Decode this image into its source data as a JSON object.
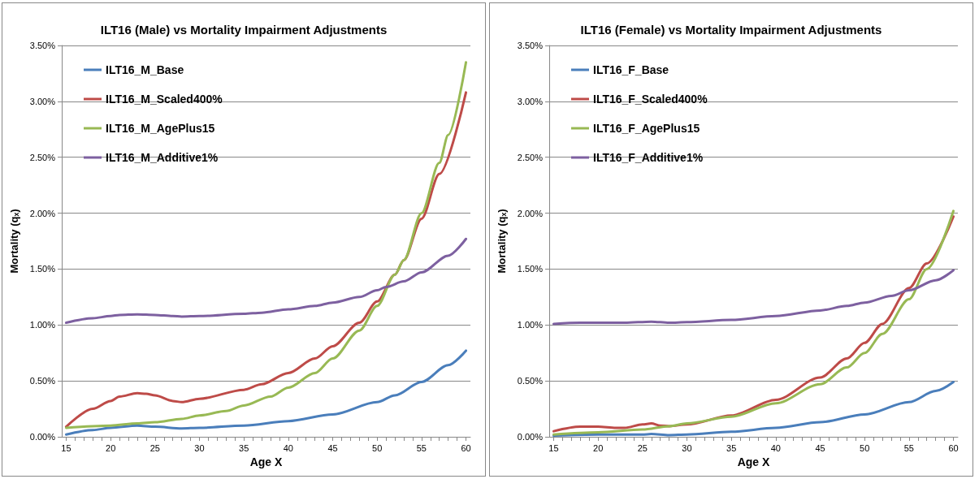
{
  "chart_data": [
    {
      "type": "line",
      "title": "ILT16 (Male) vs Mortality Impairment Adjustments",
      "xlabel": "Age X",
      "ylabel": "Mortality (qₓ)",
      "xlim": [
        14.5,
        60.5
      ],
      "ylim": [
        0,
        3.5
      ],
      "xticks": [
        15,
        {
          "value": 16,
          "label": null
        },
        {
          "value": 17,
          "label": null
        },
        {
          "value": 18,
          "label": null
        },
        {
          "value": 19,
          "label": null
        },
        20,
        {
          "value": 21,
          "label": null
        },
        {
          "value": 22,
          "label": null
        },
        {
          "value": 23,
          "label": null
        },
        {
          "value": 24,
          "label": null
        },
        25,
        {
          "value": 26,
          "label": null
        },
        {
          "value": 27,
          "label": null
        },
        {
          "value": 28,
          "label": null
        },
        {
          "value": 29,
          "label": null
        },
        30,
        {
          "value": 31,
          "label": null
        },
        {
          "value": 32,
          "label": null
        },
        {
          "value": 33,
          "label": null
        },
        {
          "value": 34,
          "label": null
        },
        35,
        {
          "value": 36,
          "label": null
        },
        {
          "value": 37,
          "label": null
        },
        {
          "value": 38,
          "label": null
        },
        {
          "value": 39,
          "label": null
        },
        40,
        {
          "value": 41,
          "label": null
        },
        {
          "value": 42,
          "label": null
        },
        {
          "value": 43,
          "label": null
        },
        {
          "value": 44,
          "label": null
        },
        45,
        {
          "value": 46,
          "label": null
        },
        {
          "value": 47,
          "label": null
        },
        {
          "value": 48,
          "label": null
        },
        {
          "value": 49,
          "label": null
        },
        50,
        {
          "value": 51,
          "label": null
        },
        {
          "value": 52,
          "label": null
        },
        {
          "value": 53,
          "label": null
        },
        {
          "value": 54,
          "label": null
        },
        55,
        {
          "value": 56,
          "label": null
        },
        {
          "value": 57,
          "label": null
        },
        {
          "value": 58,
          "label": null
        },
        {
          "value": 59,
          "label": null
        },
        60
      ],
      "yticks": [
        {
          "value": 0,
          "label": "0.00%"
        },
        {
          "value": 0.5,
          "label": "0.50%"
        },
        {
          "value": 1,
          "label": "1.00%"
        },
        {
          "value": 1.5,
          "label": "1.50%"
        },
        {
          "value": 2,
          "label": "2.00%"
        },
        {
          "value": 2.5,
          "label": "2.50%"
        },
        {
          "value": 3,
          "label": "3.00%"
        },
        {
          "value": 3.5,
          "label": "3.50%"
        }
      ],
      "grid": "y",
      "legend": "top left",
      "marker": "none",
      "line_style": "solid",
      "series": [
        {
          "name": "ILT16_M_Base",
          "color": "#4a7ebb",
          "x": [
            15,
            18,
            20,
            23,
            25,
            28,
            30,
            35,
            40,
            45,
            50,
            52,
            55,
            58,
            60
          ],
          "values": [
            0.02,
            0.06,
            0.08,
            0.1,
            0.09,
            0.075,
            0.08,
            0.1,
            0.14,
            0.2,
            0.31,
            0.37,
            0.49,
            0.64,
            0.77
          ]
        },
        {
          "name": "ILT16_M_Scaled400%",
          "color": "#be4b48",
          "x": [
            15,
            18,
            20,
            21,
            23,
            24,
            25,
            27,
            28,
            30,
            35,
            37,
            40,
            43,
            45,
            48,
            50,
            52,
            53,
            55,
            57,
            60
          ],
          "values": [
            0.09,
            0.25,
            0.32,
            0.36,
            0.39,
            0.385,
            0.37,
            0.32,
            0.31,
            0.34,
            0.42,
            0.47,
            0.57,
            0.7,
            0.81,
            1.02,
            1.21,
            1.45,
            1.58,
            1.95,
            2.35,
            3.08
          ]
        },
        {
          "name": "ILT16_M_AgePlus15",
          "color": "#98b954",
          "x": [
            15,
            20,
            23,
            25,
            28,
            30,
            33,
            35,
            38,
            40,
            43,
            45,
            48,
            50,
            52,
            53,
            55,
            57,
            58,
            60
          ],
          "values": [
            0.08,
            0.1,
            0.12,
            0.13,
            0.16,
            0.19,
            0.23,
            0.28,
            0.36,
            0.44,
            0.57,
            0.7,
            0.95,
            1.17,
            1.45,
            1.58,
            2.0,
            2.45,
            2.7,
            3.35
          ]
        },
        {
          "name": "ILT16_M_Additive1%",
          "color": "#7d60a0",
          "x": [
            15,
            18,
            20,
            21,
            23,
            25,
            27,
            28,
            30,
            35,
            37,
            40,
            43,
            45,
            48,
            50,
            51,
            53,
            55,
            58,
            60
          ],
          "values": [
            1.02,
            1.06,
            1.08,
            1.09,
            1.095,
            1.09,
            1.08,
            1.075,
            1.08,
            1.1,
            1.11,
            1.14,
            1.17,
            1.2,
            1.25,
            1.31,
            1.34,
            1.39,
            1.47,
            1.62,
            1.77
          ]
        }
      ]
    },
    {
      "type": "line",
      "title": "ILT16 (Female) vs Mortality Impairment Adjustments",
      "xlabel": "Age X",
      "ylabel": "Mortality (qₓ)",
      "xlim": [
        14.5,
        60.5
      ],
      "ylim": [
        0,
        3.5
      ],
      "xticks": [
        15,
        {
          "value": 16,
          "label": null
        },
        {
          "value": 17,
          "label": null
        },
        {
          "value": 18,
          "label": null
        },
        {
          "value": 19,
          "label": null
        },
        20,
        {
          "value": 21,
          "label": null
        },
        {
          "value": 22,
          "label": null
        },
        {
          "value": 23,
          "label": null
        },
        {
          "value": 24,
          "label": null
        },
        25,
        {
          "value": 26,
          "label": null
        },
        {
          "value": 27,
          "label": null
        },
        {
          "value": 28,
          "label": null
        },
        {
          "value": 29,
          "label": null
        },
        30,
        {
          "value": 31,
          "label": null
        },
        {
          "value": 32,
          "label": null
        },
        {
          "value": 33,
          "label": null
        },
        {
          "value": 34,
          "label": null
        },
        35,
        {
          "value": 36,
          "label": null
        },
        {
          "value": 37,
          "label": null
        },
        {
          "value": 38,
          "label": null
        },
        {
          "value": 39,
          "label": null
        },
        40,
        {
          "value": 41,
          "label": null
        },
        {
          "value": 42,
          "label": null
        },
        {
          "value": 43,
          "label": null
        },
        {
          "value": 44,
          "label": null
        },
        45,
        {
          "value": 46,
          "label": null
        },
        {
          "value": 47,
          "label": null
        },
        {
          "value": 48,
          "label": null
        },
        {
          "value": 49,
          "label": null
        },
        50,
        {
          "value": 51,
          "label": null
        },
        {
          "value": 52,
          "label": null
        },
        {
          "value": 53,
          "label": null
        },
        {
          "value": 54,
          "label": null
        },
        55,
        {
          "value": 56,
          "label": null
        },
        {
          "value": 57,
          "label": null
        },
        {
          "value": 58,
          "label": null
        },
        {
          "value": 59,
          "label": null
        },
        60
      ],
      "yticks": [
        {
          "value": 0,
          "label": "0.00%"
        },
        {
          "value": 0.5,
          "label": "0.50%"
        },
        {
          "value": 1,
          "label": "1.00%"
        },
        {
          "value": 1.5,
          "label": "1.50%"
        },
        {
          "value": 2,
          "label": "2.00%"
        },
        {
          "value": 2.5,
          "label": "2.50%"
        },
        {
          "value": 3,
          "label": "3.00%"
        },
        {
          "value": 3.5,
          "label": "3.50%"
        }
      ],
      "grid": "y",
      "legend": "top left",
      "marker": "none",
      "line_style": "solid",
      "series": [
        {
          "name": "ILT16_F_Base",
          "color": "#4a7ebb",
          "x": [
            15,
            20,
            25,
            26,
            28,
            30,
            35,
            40,
            45,
            50,
            55,
            58,
            60
          ],
          "values": [
            0.01,
            0.02,
            0.02,
            0.025,
            0.015,
            0.02,
            0.045,
            0.08,
            0.13,
            0.2,
            0.31,
            0.41,
            0.49
          ]
        },
        {
          "name": "ILT16_F_Scaled400%",
          "color": "#be4b48",
          "x": [
            15,
            18,
            20,
            22,
            23,
            25,
            26,
            27,
            28,
            30,
            35,
            40,
            45,
            48,
            50,
            52,
            55,
            57,
            60
          ],
          "values": [
            0.05,
            0.09,
            0.09,
            0.08,
            0.08,
            0.11,
            0.12,
            0.1,
            0.095,
            0.11,
            0.19,
            0.33,
            0.53,
            0.7,
            0.84,
            1.01,
            1.33,
            1.55,
            1.97
          ]
        },
        {
          "name": "ILT16_F_AgePlus15",
          "color": "#98b954",
          "x": [
            15,
            20,
            25,
            28,
            30,
            35,
            40,
            45,
            48,
            50,
            52,
            55,
            57,
            60
          ],
          "values": [
            0.02,
            0.04,
            0.065,
            0.095,
            0.12,
            0.18,
            0.3,
            0.47,
            0.62,
            0.75,
            0.92,
            1.23,
            1.5,
            2.02
          ]
        },
        {
          "name": "ILT16_F_Additive1%",
          "color": "#7d60a0",
          "x": [
            15,
            18,
            20,
            23,
            26,
            28,
            30,
            35,
            40,
            45,
            48,
            50,
            53,
            55,
            58,
            60
          ],
          "values": [
            1.01,
            1.02,
            1.02,
            1.02,
            1.03,
            1.02,
            1.025,
            1.045,
            1.08,
            1.13,
            1.17,
            1.2,
            1.26,
            1.31,
            1.4,
            1.49
          ]
        }
      ]
    }
  ]
}
